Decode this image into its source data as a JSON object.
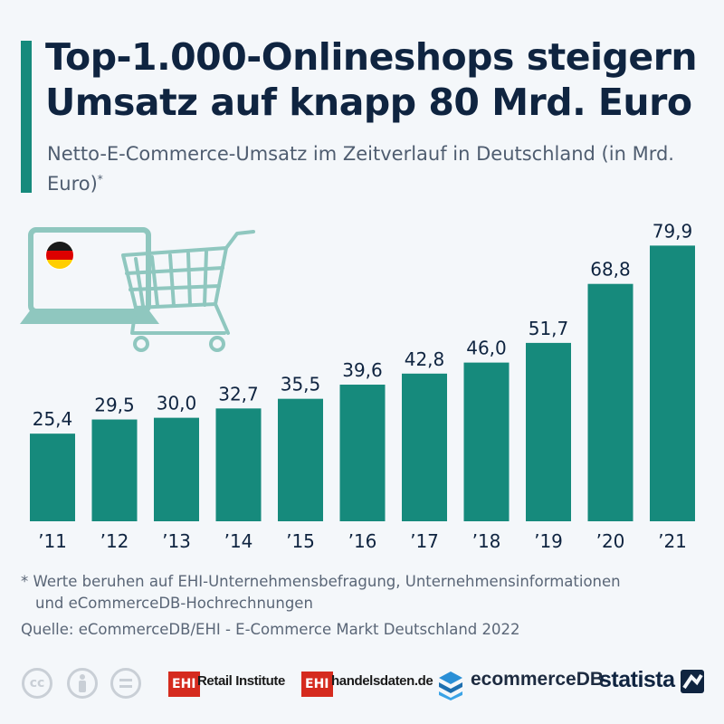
{
  "header": {
    "title": "Top-1.000-Onlineshops steigern Umsatz auf knapp 80 Mrd. Euro",
    "subtitle": "Netto-E-Commerce-Umsatz im Zeitverlauf in Deutschland (in Mrd. Euro)",
    "subtitle_mark": "*"
  },
  "chart_data": {
    "type": "bar",
    "categories": [
      "’11",
      "’12",
      "’13",
      "’14",
      "’15",
      "’16",
      "’17",
      "’18",
      "’19",
      "’20",
      "’21"
    ],
    "values": [
      25.4,
      29.5,
      30.0,
      32.7,
      35.5,
      39.6,
      42.8,
      46.0,
      51.7,
      68.8,
      79.9
    ],
    "value_labels": [
      "25,4",
      "29,5",
      "30,0",
      "32,7",
      "35,5",
      "39,6",
      "42,8",
      "46,0",
      "51,7",
      "68,8",
      "79,9"
    ],
    "ylim": [
      0,
      80
    ],
    "grid": false,
    "bar_color": "#168a7c"
  },
  "footer": {
    "footnote_line1": "* Werte beruhen auf EHI-Unternehmensbefragung, Unternehmensinformationen",
    "footnote_line2": "und eCommerceDB-Hochrechnungen",
    "source": "Quelle: eCommerceDB/EHI - E-Commerce Markt Deutschland 2022"
  },
  "logos": {
    "ehi_badge": "EHI",
    "ehi_retail": "Retail Institute",
    "ehi_handelsdaten": "handelsdaten.de",
    "ecommercedb": "ecommerceDB",
    "statista": "statista"
  },
  "colors": {
    "accent": "#168a7c",
    "title": "#0f2440",
    "illustration": "#8fc7bf"
  }
}
